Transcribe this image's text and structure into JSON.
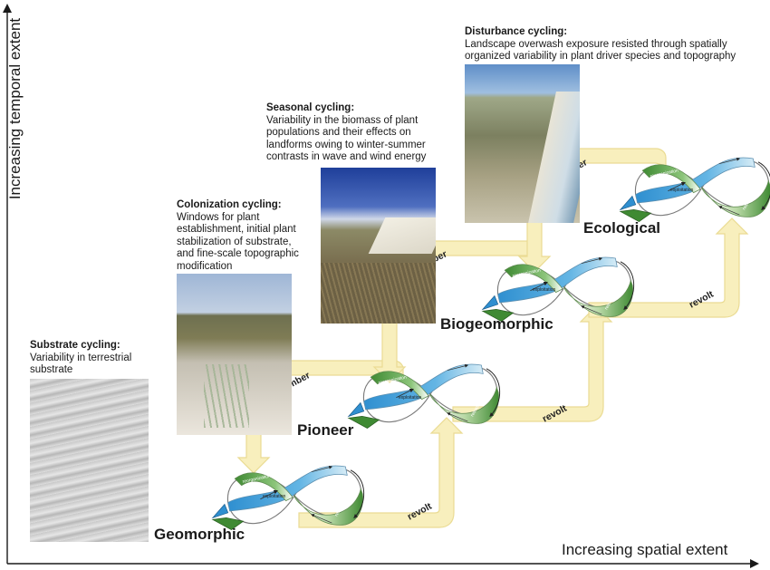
{
  "axes": {
    "y_label": "Increasing temporal extent",
    "x_label": "Increasing spatial extent"
  },
  "stages": [
    {
      "name": "Geomorphic"
    },
    {
      "name": "Pioneer"
    },
    {
      "name": "Biogeomorphic"
    },
    {
      "name": "Ecological"
    }
  ],
  "cycles": [
    {
      "title": "Substrate cycling:",
      "text": "Variability in terrestrial substrate"
    },
    {
      "title": "Colonization cycling:",
      "text": "Windows for plant establishment, initial plant stabilization of substrate, and fine-scale topographic modification"
    },
    {
      "title": "Seasonal cycling:",
      "text": "Variability in the biomass of plant populations and their effects on landforms owing to winter-summer contrasts in wave and wind energy"
    },
    {
      "title": "Disturbance cycling:",
      "text": "Landscape overwash exposure resisted  through spatially organized variability in plant driver species and topography"
    }
  ],
  "connectors": {
    "remember": "remember",
    "revolt": "revolt"
  },
  "loop_labels": {
    "conservation": "conservation",
    "exploitation": "exploitation",
    "reorganization": "reorganization",
    "release": "release"
  },
  "colors": {
    "arrow_fill": "#f8eeb8",
    "arrow_stroke": "#e9d98a",
    "loop_blue": "#3a9bd5",
    "loop_green": "#4a8f3a"
  }
}
